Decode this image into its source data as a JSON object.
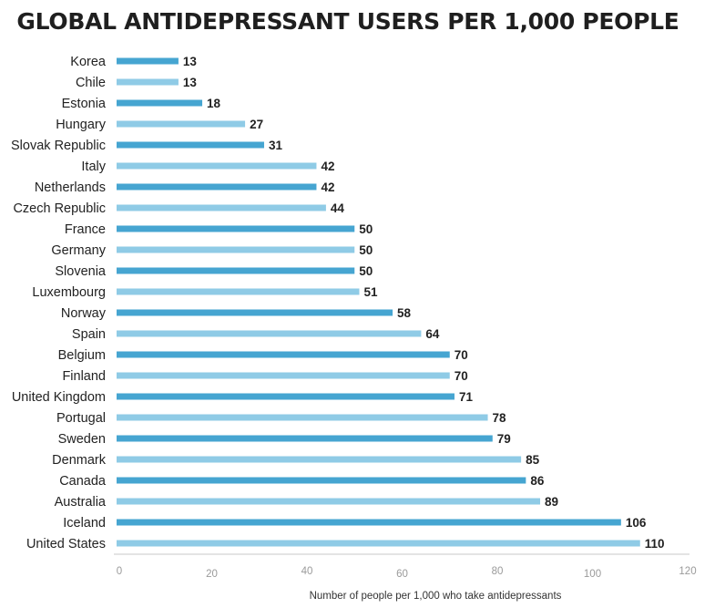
{
  "chart_data": {
    "type": "bar",
    "orientation": "horizontal",
    "title": "GLOBAL ANTIDEPRESSANT USERS PER 1,000 PEOPLE",
    "xlabel": "Number of people per 1,000 who take antidepressants",
    "ylabel": "",
    "xlim": [
      0,
      120
    ],
    "xticks": [
      0,
      20,
      40,
      60,
      80,
      100,
      120
    ],
    "grid": false,
    "legend": "none",
    "categories": [
      "Korea",
      "Chile",
      "Estonia",
      "Hungary",
      "Slovak Republic",
      "Italy",
      "Netherlands",
      "Czech Republic",
      "France",
      "Germany",
      "Slovenia",
      "Luxembourg",
      "Norway",
      "Spain",
      "Belgium",
      "Finland",
      "United Kingdom",
      "Portugal",
      "Sweden",
      "Denmark",
      "Canada",
      "Australia",
      "Iceland",
      "United States"
    ],
    "values": [
      13,
      13,
      18,
      27,
      31,
      42,
      42,
      44,
      50,
      50,
      50,
      51,
      58,
      64,
      70,
      70,
      71,
      78,
      79,
      85,
      86,
      89,
      106,
      110
    ],
    "colors": {
      "bar_dark": "#46a5d1",
      "bar_light": "#8fcbe6",
      "axis_line": "#c9c9c9"
    }
  }
}
